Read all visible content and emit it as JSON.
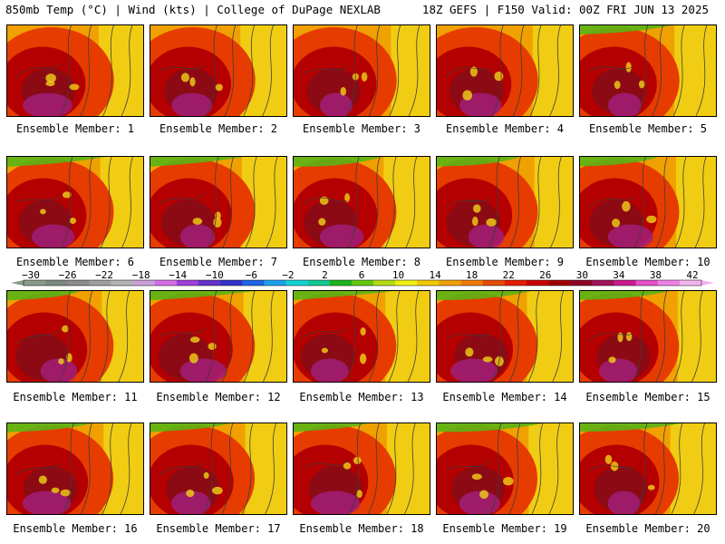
{
  "header": {
    "left": "850mb Temp (°C) | Wind (kts) | College of DuPage NEXLAB",
    "right": "18Z GEFS | F150 Valid: 00Z FRI JUN 13 2025"
  },
  "member_label": "Ensemble Member:",
  "members": [
    {
      "number": "1"
    },
    {
      "number": "2"
    },
    {
      "number": "3"
    },
    {
      "number": "4"
    },
    {
      "number": "5"
    },
    {
      "number": "6"
    },
    {
      "number": "7"
    },
    {
      "number": "8"
    },
    {
      "number": "9"
    },
    {
      "number": "10"
    },
    {
      "number": "11"
    },
    {
      "number": "12"
    },
    {
      "number": "13"
    },
    {
      "number": "14"
    },
    {
      "number": "15"
    },
    {
      "number": "16"
    },
    {
      "number": "17"
    },
    {
      "number": "18"
    },
    {
      "number": "19"
    },
    {
      "number": "20"
    }
  ],
  "colorbar": {
    "labels": [
      "−30",
      "−26",
      "−22",
      "−18",
      "−14",
      "−10",
      "−6",
      "−2",
      "2",
      "6",
      "10",
      "14",
      "18",
      "22",
      "26",
      "30",
      "34",
      "38",
      "42"
    ],
    "colors": [
      "#8a9a8a",
      "#7d8a80",
      "#8c8c8c",
      "#a0a0a0",
      "#b4b4b4",
      "#c8a0d8",
      "#d26ee6",
      "#a040dc",
      "#6432c8",
      "#3232c8",
      "#1e64e6",
      "#1ea0f0",
      "#14d2d2",
      "#14c896",
      "#1eb41e",
      "#64c814",
      "#b4dc14",
      "#f0f014",
      "#f0c800",
      "#f0a000",
      "#f07800",
      "#e64b00",
      "#e61e00",
      "#c80000",
      "#a00000",
      "#8c0028",
      "#a0145a",
      "#c81e8c",
      "#e650c8",
      "#f082e6",
      "#f4b4f0"
    ]
  },
  "colors": {
    "cool_green": "#5ab414",
    "yellow": "#f0d214",
    "orange": "#f0a000",
    "red": "#e63c00",
    "dark_red": "#b40000",
    "maroon": "#8c0a14",
    "magenta": "#a01e78",
    "contour": "#3c3c3c",
    "border": "#000000"
  }
}
